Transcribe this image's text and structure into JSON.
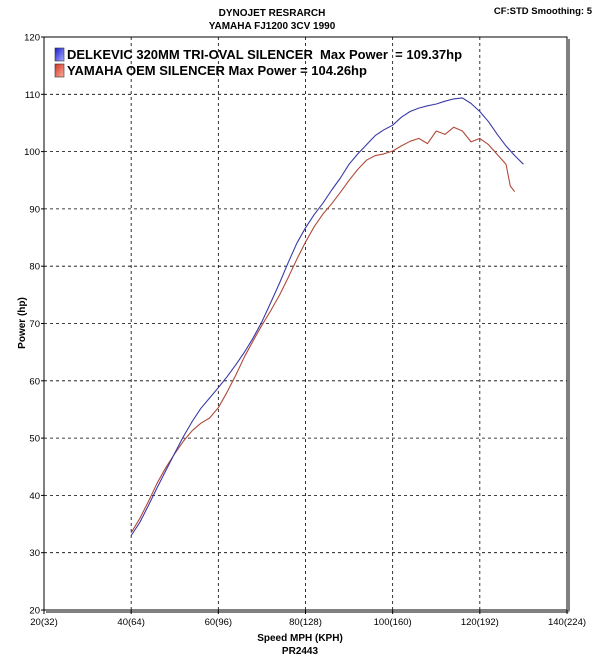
{
  "header": {
    "line1": "DYNOJET RESRARCH",
    "line2": "YAMAHA FJ1200 3CV 1990",
    "settings": "CF:STD Smoothing: 5"
  },
  "footer": {
    "xlabel": "Speed MPH (KPH)",
    "code": "PR2443"
  },
  "colors": {
    "series1": "#3a3aa8",
    "series2": "#b04a3a",
    "grid": "#000000",
    "frame": "#808080"
  },
  "chart_data": {
    "type": "line",
    "title": "DYNOJET RESRARCH",
    "subtitle": "YAMAHA FJ1200 3CV 1990",
    "xlabel": "Speed MPH (KPH)",
    "ylabel": "Power (hp)",
    "xlim": [
      20,
      140
    ],
    "ylim": [
      20,
      120
    ],
    "xticks": [
      20,
      40,
      60,
      80,
      100,
      120,
      140
    ],
    "xtick_labels": [
      "20(32)",
      "40(64)",
      "60(96)",
      "80(128)",
      "100(160)",
      "120(192)",
      "140(224)"
    ],
    "yticks": [
      20,
      30,
      40,
      50,
      60,
      70,
      80,
      90,
      100,
      110,
      120
    ],
    "ytick_labels": [
      "20",
      "30",
      "40",
      "50",
      "60",
      "70",
      "80",
      "90",
      "100",
      "110",
      "120"
    ],
    "grid": true,
    "legend_position": "top-left",
    "series": [
      {
        "name": "DELKEVIC 320MM TRI-OVAL SILENCER  Max Power  = 109.37hp",
        "color": "#3a3aa8",
        "x": [
          40,
          42,
          44,
          46,
          48,
          50,
          52,
          54,
          56,
          58,
          60,
          62,
          64,
          66,
          68,
          70,
          72,
          74,
          76,
          78,
          80,
          82,
          84,
          86,
          88,
          90,
          92,
          94,
          96,
          98,
          100,
          102,
          104,
          106,
          108,
          110,
          112,
          114,
          116,
          118,
          120,
          122,
          124,
          126,
          128,
          130
        ],
        "y": [
          33.0,
          35.3,
          38.3,
          41.4,
          44.4,
          47.4,
          50.3,
          52.9,
          55.2,
          57.0,
          58.8,
          60.7,
          62.8,
          65.0,
          67.5,
          70.3,
          73.6,
          77.0,
          80.6,
          84.0,
          86.7,
          89.0,
          91.0,
          93.3,
          95.4,
          97.8,
          99.6,
          101.2,
          102.8,
          103.8,
          104.6,
          106.0,
          107.0,
          107.6,
          108.0,
          108.3,
          108.8,
          109.2,
          109.37,
          108.4,
          107.0,
          105.2,
          103.0,
          101.0,
          99.3,
          97.8
        ]
      },
      {
        "name": "YAMAHA OEM SILENCER Max Power = 104.26hp",
        "color": "#b04a3a",
        "x": [
          40,
          42,
          44,
          46,
          48,
          50,
          52,
          54,
          56,
          58,
          60,
          62,
          64,
          66,
          68,
          70,
          72,
          74,
          76,
          78,
          80,
          82,
          84,
          86,
          88,
          90,
          92,
          94,
          96,
          98,
          100,
          102,
          104,
          106,
          108,
          110,
          112,
          114,
          116,
          118,
          120,
          122,
          124,
          126,
          127,
          128
        ],
        "y": [
          33.5,
          36.0,
          39.0,
          42.2,
          44.9,
          47.3,
          49.5,
          51.3,
          52.6,
          53.5,
          55.3,
          58.0,
          61.0,
          64.2,
          67.0,
          69.7,
          72.2,
          74.9,
          78.0,
          81.2,
          84.2,
          86.9,
          89.1,
          90.9,
          92.9,
          95.0,
          96.9,
          98.5,
          99.3,
          99.6,
          100.1,
          101.0,
          101.8,
          102.3,
          101.4,
          103.6,
          103.0,
          104.26,
          103.6,
          101.7,
          102.3,
          101.2,
          99.5,
          97.8,
          94.0,
          93.0
        ]
      }
    ]
  }
}
